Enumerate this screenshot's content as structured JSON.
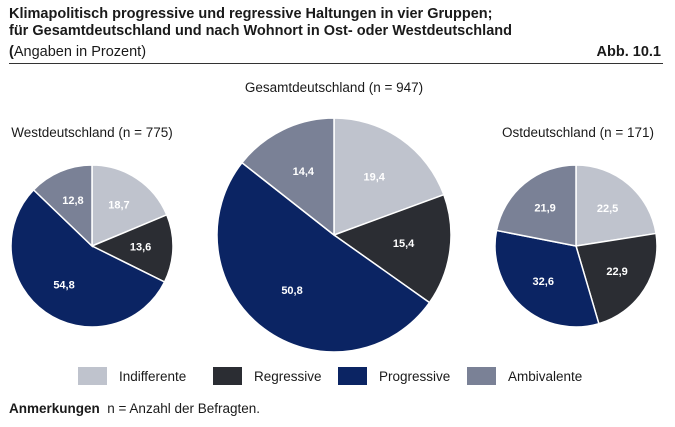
{
  "header": {
    "title_line1": "Klimapolitisch progressive und regressive Haltungen in vier Gruppen;",
    "title_line2": "für Gesamtdeutschland und nach Wohnort in Ost- oder Westdeutschland",
    "subtitle_open": "(",
    "subtitle_rest": "Angaben in Prozent)",
    "figure_number": "Abb. 10.1"
  },
  "colors": {
    "Indifferente": "#bfc3cd",
    "Regressive": "#2b2d33",
    "Progressive": "#0b2463",
    "Ambivalente": "#7a8196"
  },
  "chart_data": [
    {
      "type": "pie",
      "title": "Westdeutschland (n = 775)",
      "categories": [
        "Indifferente",
        "Regressive",
        "Progressive",
        "Ambivalente"
      ],
      "values": [
        18.7,
        13.6,
        54.8,
        12.8
      ],
      "labels": [
        "18,7",
        "13,6",
        "54,8",
        "12,8"
      ]
    },
    {
      "type": "pie",
      "title": "Gesamtdeutschland (n = 947)",
      "categories": [
        "Indifferente",
        "Regressive",
        "Progressive",
        "Ambivalente"
      ],
      "values": [
        19.4,
        15.4,
        50.8,
        14.4
      ],
      "labels": [
        "19,4",
        "15,4",
        "50,8",
        "14,4"
      ]
    },
    {
      "type": "pie",
      "title": "Ostdeutschland (n = 171)",
      "categories": [
        "Indifferente",
        "Regressive",
        "Progressive",
        "Ambivalente"
      ],
      "values": [
        22.5,
        22.9,
        32.6,
        21.9
      ],
      "labels": [
        "22,5",
        "22,9",
        "32,6",
        "21,9"
      ]
    }
  ],
  "legend": [
    "Indifferente",
    "Regressive",
    "Progressive",
    "Ambivalente"
  ],
  "note": {
    "label": "Anmerkungen",
    "text": "n = Anzahl der Befragten."
  }
}
